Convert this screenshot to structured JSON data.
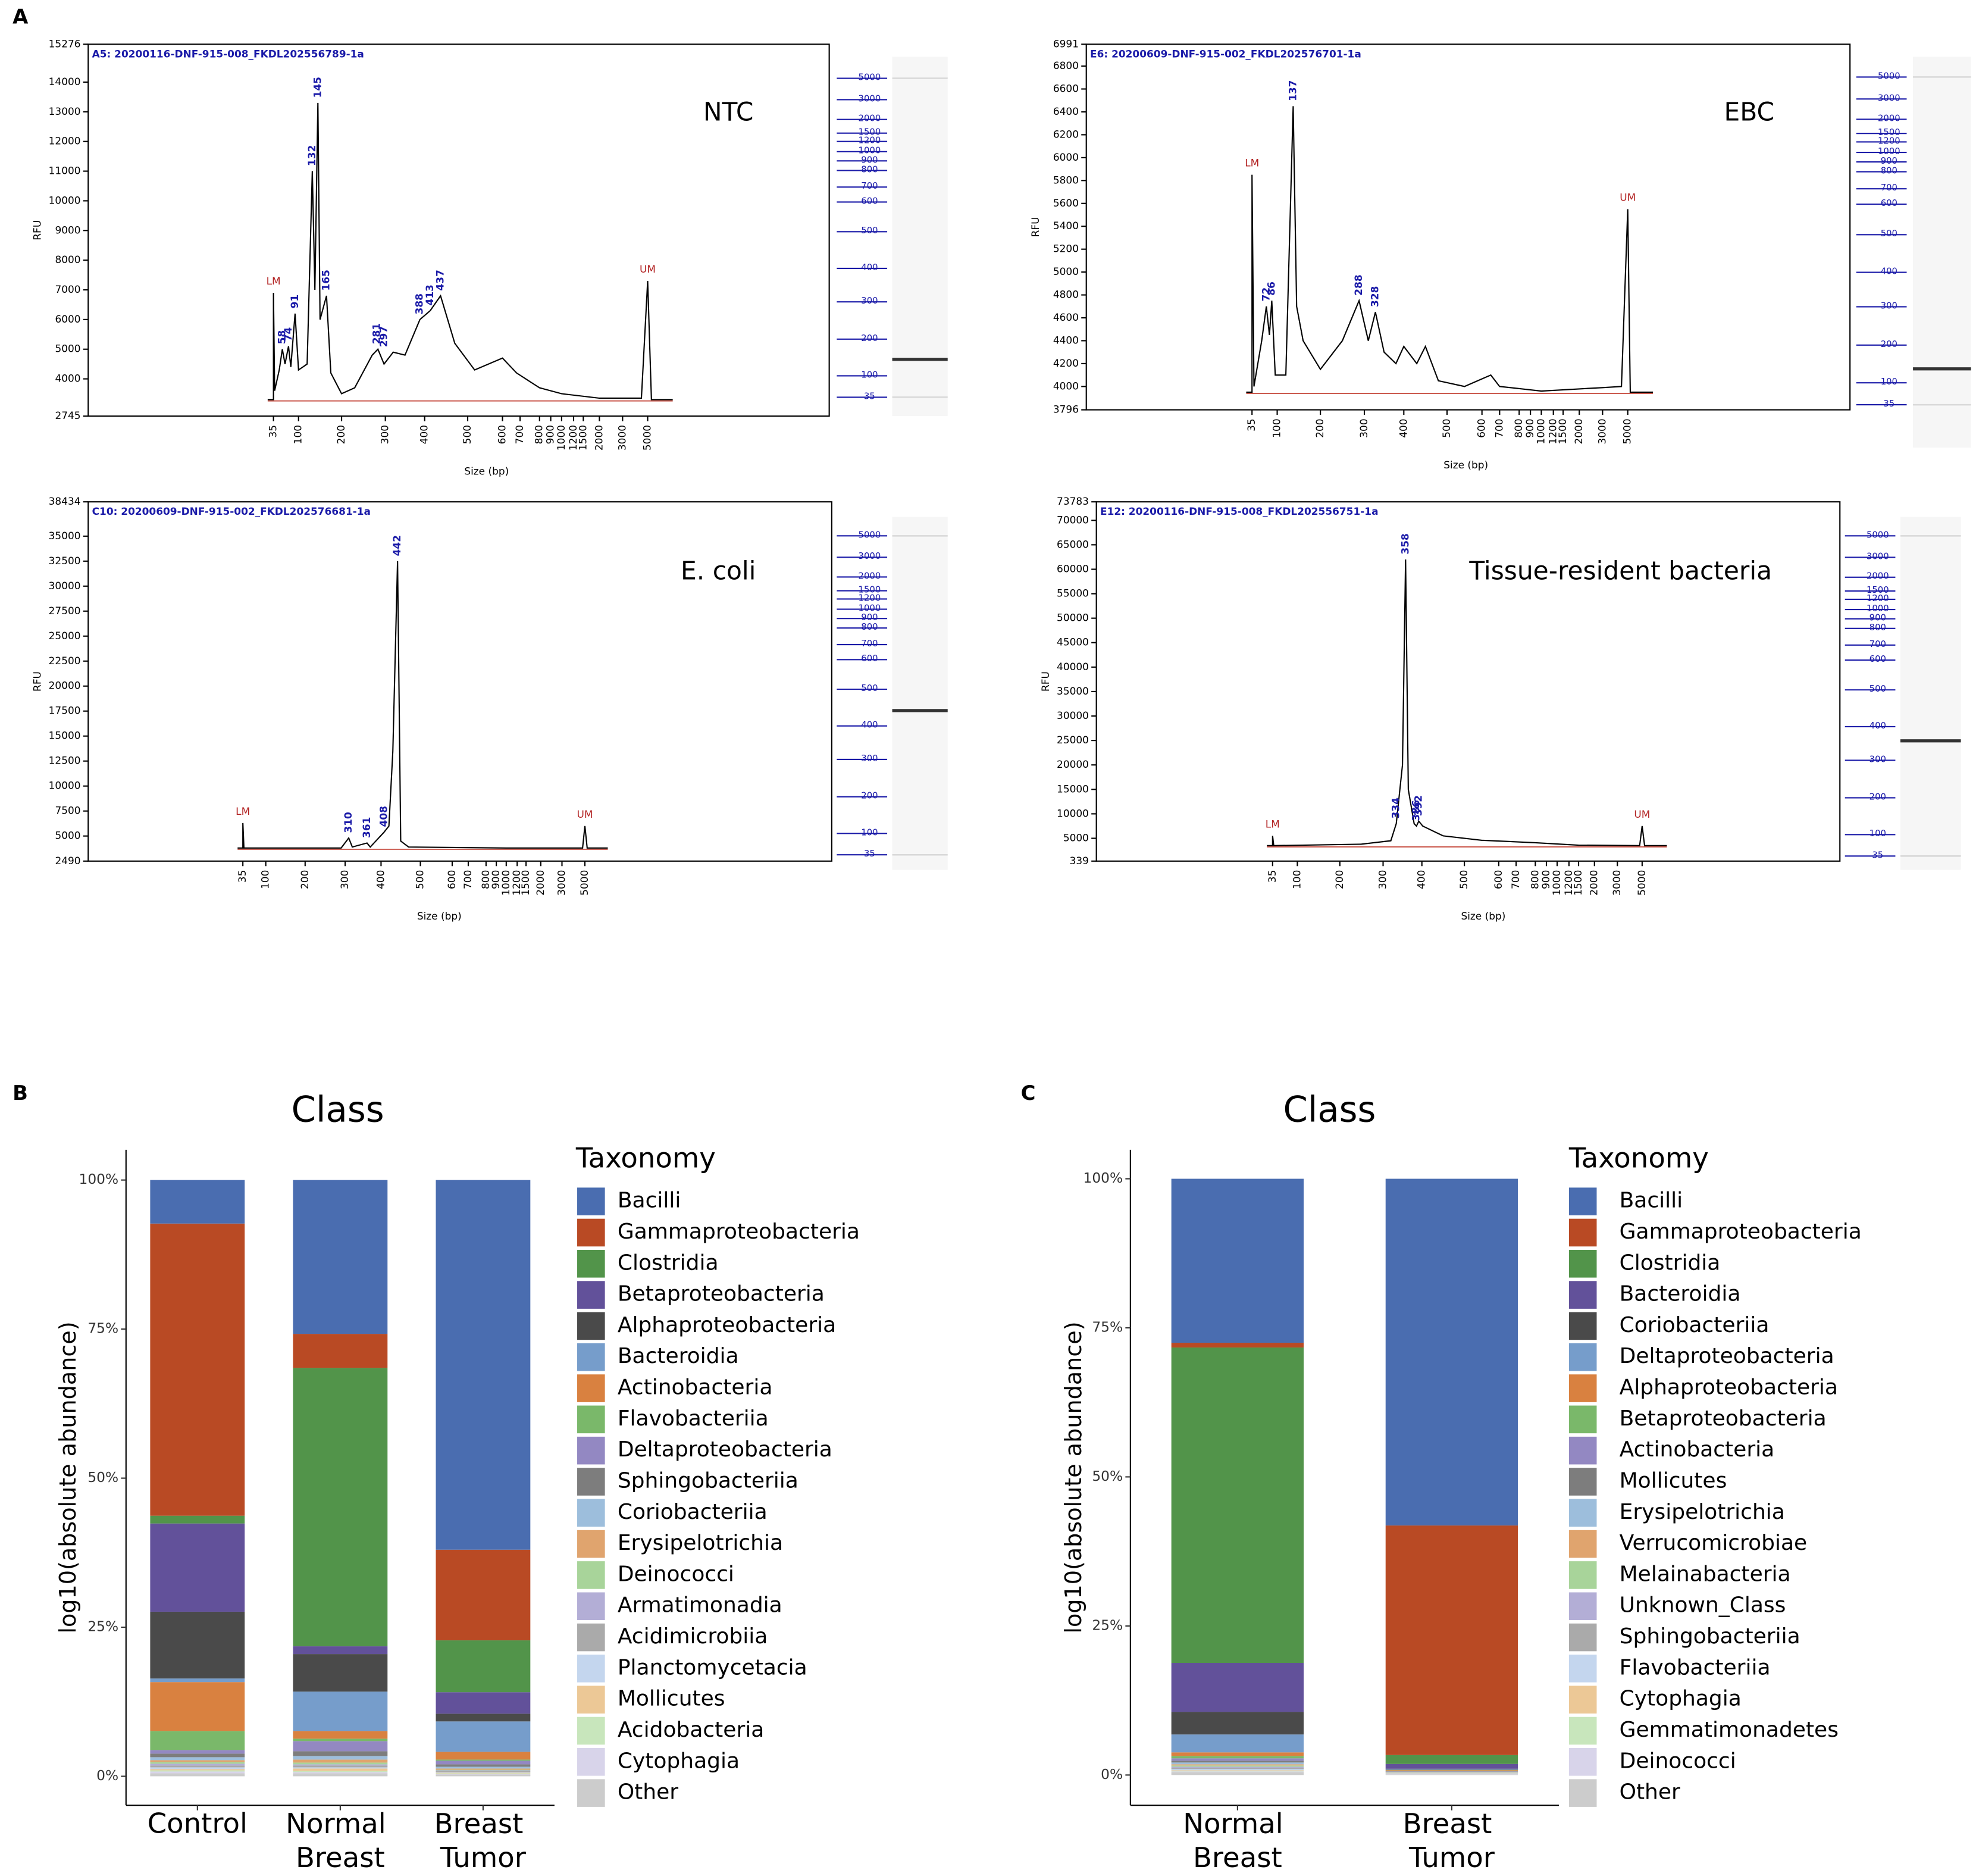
{
  "panel_labels": [
    "A",
    "B",
    "C"
  ],
  "chart_data": [
    {
      "type": "electropherogram",
      "title": "A5: 20200116-DNF-915-008_FKDL202556789-1a",
      "label": "NTC",
      "x_label": "Size (bp)",
      "y_label": "RFU",
      "xticks": [
        35,
        100,
        200,
        300,
        400,
        500,
        600,
        700,
        800,
        900,
        1000,
        1200,
        1500,
        2000,
        3000,
        5000
      ],
      "ladder": [
        35,
        100,
        200,
        300,
        400,
        500,
        600,
        700,
        800,
        900,
        1000,
        1200,
        1500,
        2000,
        3000,
        5000
      ],
      "ylim": [
        2745,
        15276
      ],
      "yticks": [
        2745,
        4000,
        5000,
        6000,
        7000,
        8000,
        9000,
        10000,
        11000,
        12000,
        13000,
        14000,
        15276
      ],
      "color": "#000000",
      "x": [
        20,
        35,
        35,
        38,
        50,
        58,
        65,
        74,
        80,
        91,
        100,
        120,
        132,
        138,
        145,
        150,
        165,
        175,
        200,
        230,
        270,
        283,
        297,
        320,
        350,
        388,
        413,
        437,
        470,
        520,
        600,
        680,
        800,
        1000,
        2000,
        4500,
        5000,
        5300,
        7000
      ],
      "values": [
        3300,
        3300,
        6900,
        3600,
        4300,
        5000,
        4500,
        5100,
        4400,
        6200,
        4300,
        4500,
        11000,
        7000,
        13300,
        6000,
        6800,
        4200,
        3500,
        3700,
        4800,
        5000,
        4500,
        4900,
        4800,
        6000,
        6300,
        6800,
        5200,
        4300,
        4700,
        4200,
        3700,
        3500,
        3350,
        3350,
        7300,
        3300,
        3300
      ],
      "annotations": [
        {
          "label": "58",
          "x": 58,
          "y": 5000
        },
        {
          "label": "74",
          "x": 74,
          "y": 5100
        },
        {
          "label": "91",
          "x": 91,
          "y": 6200
        },
        {
          "label": "132",
          "x": 132,
          "y": 11000
        },
        {
          "label": "145",
          "x": 145,
          "y": 13300
        },
        {
          "label": "165",
          "x": 165,
          "y": 6800
        },
        {
          "label": "281",
          "x": 281,
          "y": 5000
        },
        {
          "label": "297",
          "x": 297,
          "y": 4900
        },
        {
          "label": "388",
          "x": 388,
          "y": 6000
        },
        {
          "label": "413",
          "x": 413,
          "y": 6300
        },
        {
          "label": "437",
          "x": 437,
          "y": 6800
        }
      ],
      "markers": [
        {
          "label": "LM",
          "x": 35,
          "y": 6900
        },
        {
          "label": "UM",
          "x": 5000,
          "y": 7300
        }
      ]
    },
    {
      "type": "electropherogram",
      "title": "E6: 20200609-DNF-915-002_FKDL202576701-1a",
      "label": "EBC",
      "x_label": "Size (bp)",
      "y_label": "RFU",
      "xticks": [
        35,
        100,
        200,
        300,
        400,
        500,
        600,
        700,
        800,
        900,
        1000,
        1200,
        1500,
        2000,
        3000,
        5000
      ],
      "ladder": [
        35,
        100,
        200,
        300,
        400,
        500,
        600,
        700,
        800,
        900,
        1000,
        1200,
        1500,
        2000,
        3000,
        5000
      ],
      "ylim": [
        3796,
        6991
      ],
      "yticks": [
        3796,
        4000,
        4200,
        4400,
        4600,
        4800,
        5000,
        5200,
        5400,
        5600,
        5800,
        6000,
        6200,
        6400,
        6600,
        6800,
        6991
      ],
      "color": "#000000",
      "x": [
        20,
        35,
        35,
        40,
        60,
        72,
        80,
        86,
        95,
        120,
        137,
        145,
        160,
        200,
        250,
        288,
        310,
        328,
        350,
        380,
        400,
        430,
        450,
        480,
        550,
        650,
        700,
        1000,
        3000,
        4500,
        5000,
        5200,
        7000
      ],
      "values": [
        3950,
        3950,
        5850,
        4000,
        4400,
        4700,
        4450,
        4750,
        4100,
        4100,
        6450,
        4700,
        4400,
        4150,
        4400,
        4750,
        4400,
        4650,
        4300,
        4200,
        4350,
        4200,
        4350,
        4050,
        4000,
        4100,
        4000,
        3960,
        3990,
        4000,
        5550,
        3950,
        3950
      ],
      "annotations": [
        {
          "label": "72",
          "x": 72,
          "y": 4700
        },
        {
          "label": "86",
          "x": 86,
          "y": 4750
        },
        {
          "label": "137",
          "x": 137,
          "y": 6450
        },
        {
          "label": "288",
          "x": 288,
          "y": 4750
        },
        {
          "label": "328",
          "x": 328,
          "y": 4650
        }
      ],
      "markers": [
        {
          "label": "LM",
          "x": 35,
          "y": 5850
        },
        {
          "label": "UM",
          "x": 5000,
          "y": 5550
        }
      ]
    },
    {
      "type": "electropherogram",
      "title": "C10: 20200609-DNF-915-002_FKDL202576681-1a",
      "label": "E. coli",
      "x_label": "Size (bp)",
      "y_label": "RFU",
      "xticks": [
        35,
        100,
        200,
        300,
        400,
        500,
        600,
        700,
        800,
        900,
        1000,
        1200,
        1500,
        2000,
        3000,
        5000
      ],
      "ladder": [
        35,
        100,
        200,
        300,
        400,
        500,
        600,
        700,
        800,
        900,
        1000,
        1200,
        1500,
        2000,
        3000,
        5000
      ],
      "ylim": [
        2490,
        38434
      ],
      "yticks": [
        2490,
        5000,
        7500,
        10000,
        12500,
        15000,
        17500,
        20000,
        22500,
        25000,
        27500,
        30000,
        32500,
        35000,
        38434
      ],
      "color": "#000000",
      "x": [
        20,
        35,
        35,
        38,
        290,
        310,
        320,
        361,
        370,
        408,
        420,
        430,
        442,
        450,
        470,
        1000,
        4800,
        5000,
        5200,
        7000
      ],
      "values": [
        3800,
        3800,
        6300,
        3800,
        3800,
        4800,
        3900,
        4300,
        3900,
        5400,
        6000,
        13500,
        32500,
        4500,
        3900,
        3800,
        3800,
        6000,
        3800,
        3800
      ],
      "annotations": [
        {
          "label": "310",
          "x": 310,
          "y": 4800
        },
        {
          "label": "361",
          "x": 361,
          "y": 4300
        },
        {
          "label": "408",
          "x": 408,
          "y": 5400
        },
        {
          "label": "442",
          "x": 442,
          "y": 32500
        }
      ],
      "markers": [
        {
          "label": "LM",
          "x": 35,
          "y": 6300
        },
        {
          "label": "UM",
          "x": 5000,
          "y": 6000
        }
      ]
    },
    {
      "type": "electropherogram",
      "title": "E12: 20200116-DNF-915-008_FKDL202556751-1a",
      "label": "Tissue-resident bacteria",
      "x_label": "Size (bp)",
      "y_label": "RFU",
      "xticks": [
        35,
        100,
        200,
        300,
        400,
        500,
        600,
        700,
        800,
        900,
        1000,
        1200,
        1500,
        2000,
        3000,
        5000
      ],
      "ladder": [
        35,
        100,
        200,
        300,
        400,
        500,
        600,
        700,
        800,
        900,
        1000,
        1200,
        1500,
        2000,
        3000,
        5000
      ],
      "ylim": [
        339,
        73783
      ],
      "yticks": [
        339,
        5000,
        10000,
        15000,
        20000,
        25000,
        30000,
        35000,
        40000,
        45000,
        50000,
        55000,
        60000,
        65000,
        70000,
        73783
      ],
      "color": "#000000",
      "x": [
        20,
        35,
        35,
        38,
        250,
        320,
        334,
        350,
        358,
        365,
        380,
        386,
        392,
        402,
        450,
        550,
        800,
        1500,
        4800,
        5000,
        5200,
        7000
      ],
      "values": [
        3500,
        3500,
        5500,
        3500,
        3800,
        4500,
        8000,
        20000,
        62000,
        15000,
        8000,
        7500,
        8500,
        7500,
        5500,
        4600,
        4100,
        3600,
        3500,
        7500,
        3500,
        3500
      ],
      "annotations": [
        {
          "label": "334",
          "x": 334,
          "y": 8000
        },
        {
          "label": "358",
          "x": 358,
          "y": 62000
        },
        {
          "label": "386",
          "x": 386,
          "y": 7500
        },
        {
          "label": "392",
          "x": 392,
          "y": 8500
        }
      ],
      "markers": [
        {
          "label": "LM",
          "x": 35,
          "y": 5500
        },
        {
          "label": "UM",
          "x": 5000,
          "y": 7500
        }
      ]
    },
    {
      "type": "stacked_bar",
      "title": "Class",
      "y_label": "log10(absolute abundance)",
      "legend_title": "Taxonomy",
      "categories": [
        "Control",
        "Normal Breast",
        "Breast Tumor"
      ],
      "ylim": [
        0,
        100
      ],
      "yticks": [
        {
          "value": 0,
          "label": "0%"
        },
        {
          "value": 25,
          "label": "25%"
        },
        {
          "value": 50,
          "label": "50%"
        },
        {
          "value": 75,
          "label": "75%"
        },
        {
          "value": 100,
          "label": "100%"
        }
      ],
      "series": [
        {
          "name": "Bacilli",
          "color": "#4a6db0",
          "values": [
            7.3,
            25.8,
            62
          ]
        },
        {
          "name": "Gammaproteobacteria",
          "color": "#b94a24",
          "values": [
            49.0,
            5.7,
            15.2
          ]
        },
        {
          "name": "Clostridia",
          "color": "#52944a",
          "values": [
            1.3,
            46.7,
            8.7
          ]
        },
        {
          "name": "Betaproteobacteria",
          "color": "#62519a",
          "values": [
            14.8,
            1.3,
            3.6
          ]
        },
        {
          "name": "Alphaproteobacteria",
          "color": "#4a4a4a",
          "values": [
            11.2,
            6.3,
            1.3
          ]
        },
        {
          "name": "Bacteroidia",
          "color": "#769dcb",
          "values": [
            0.6,
            6.6,
            5.1
          ]
        },
        {
          "name": "Actinobacteria",
          "color": "#d98140",
          "values": [
            8.2,
            1.3,
            1.3
          ]
        },
        {
          "name": "Flavobacteriia",
          "color": "#7ab86a",
          "values": [
            3.2,
            0.4,
            0.2
          ]
        },
        {
          "name": "Deltaproteobacteria",
          "color": "#9388c2",
          "values": [
            0.6,
            1.7,
            0.6
          ]
        },
        {
          "name": "Sphingobacteriia",
          "color": "#7d7d7d",
          "values": [
            0.6,
            0.8,
            0.4
          ]
        },
        {
          "name": "Coriobacteriia",
          "color": "#9dbedc",
          "values": [
            0.5,
            0.6,
            0.3
          ]
        },
        {
          "name": "Erysipelotrichia",
          "color": "#e0a46e",
          "values": [
            0.3,
            0.5,
            0.2
          ]
        },
        {
          "name": "Deinococci",
          "color": "#a8d49a",
          "values": [
            0.3,
            0.3,
            0.1
          ]
        },
        {
          "name": "Armatimonadia",
          "color": "#b3aed6",
          "values": [
            0.3,
            0.2,
            0.1
          ]
        },
        {
          "name": "Acidimicrobiia",
          "color": "#aaaaaa",
          "values": [
            0.3,
            0.3,
            0.2
          ]
        },
        {
          "name": "Planctomycetacia",
          "color": "#c4d6ee",
          "values": [
            0.3,
            0.2,
            0.1
          ]
        },
        {
          "name": "Mollicutes",
          "color": "#ecc896",
          "values": [
            0.2,
            0.4,
            0.1
          ]
        },
        {
          "name": "Acidobacteria",
          "color": "#c8e6bc",
          "values": [
            0.2,
            0.2,
            0.1
          ]
        },
        {
          "name": "Cytophagia",
          "color": "#d8d4ea",
          "values": [
            0.3,
            0.2,
            0.1
          ]
        },
        {
          "name": "Other",
          "color": "#cccccc",
          "values": [
            0.5,
            0.5,
            0.3
          ]
        }
      ]
    },
    {
      "type": "stacked_bar",
      "title": "Class",
      "y_label": "log10(absolute abundance)",
      "legend_title": "Taxonomy",
      "categories": [
        "Normal Breast",
        "Breast Tumor"
      ],
      "ylim": [
        0,
        100
      ],
      "yticks": [
        {
          "value": 0,
          "label": "0%"
        },
        {
          "value": 25,
          "label": "25%"
        },
        {
          "value": 50,
          "label": "50%"
        },
        {
          "value": 75,
          "label": "75%"
        },
        {
          "value": 100,
          "label": "100%"
        }
      ],
      "series": [
        {
          "name": "Bacilli",
          "color": "#4a6db0",
          "values": [
            27.5,
            58.15
          ]
        },
        {
          "name": "Gammaproteobacteria",
          "color": "#b94a24",
          "values": [
            0.8,
            38.5
          ]
        },
        {
          "name": "Clostridia",
          "color": "#52944a",
          "values": [
            52.9,
            1.5
          ]
        },
        {
          "name": "Bacteroidia",
          "color": "#62519a",
          "values": [
            8.2,
            0.8
          ]
        },
        {
          "name": "Coriobacteriia",
          "color": "#4a4a4a",
          "values": [
            3.8,
            0.1
          ]
        },
        {
          "name": "Deltaproteobacteria",
          "color": "#769dcb",
          "values": [
            3.0,
            0.1
          ]
        },
        {
          "name": "Alphaproteobacteria",
          "color": "#d98140",
          "values": [
            0.6,
            0.1
          ]
        },
        {
          "name": "Betaproteobacteria",
          "color": "#7ab86a",
          "values": [
            0.4,
            0.1
          ]
        },
        {
          "name": "Actinobacteria",
          "color": "#9388c2",
          "values": [
            0.4,
            0.05
          ]
        },
        {
          "name": "Mollicutes",
          "color": "#7d7d7d",
          "values": [
            0.3,
            0.05
          ]
        },
        {
          "name": "Erysipelotrichia",
          "color": "#9dbedc",
          "values": [
            0.3,
            0.05
          ]
        },
        {
          "name": "Verrucomicrobiae",
          "color": "#e0a46e",
          "values": [
            0.2,
            0.05
          ]
        },
        {
          "name": "Melainabacteria",
          "color": "#a8d49a",
          "values": [
            0.2,
            0.05
          ]
        },
        {
          "name": "Unknown_Class",
          "color": "#b3aed6",
          "values": [
            0.2,
            0.05
          ]
        },
        {
          "name": "Sphingobacteriia",
          "color": "#aaaaaa",
          "values": [
            0.2,
            0.05
          ]
        },
        {
          "name": "Flavobacteriia",
          "color": "#c4d6ee",
          "values": [
            0.2,
            0.05
          ]
        },
        {
          "name": "Cytophagia",
          "color": "#ecc896",
          "values": [
            0.1,
            0.05
          ]
        },
        {
          "name": "Gemmatimonadetes",
          "color": "#c8e6bc",
          "values": [
            0.1,
            0.05
          ]
        },
        {
          "name": "Deinococci",
          "color": "#d8d4ea",
          "values": [
            0.1,
            0.05
          ]
        },
        {
          "name": "Other",
          "color": "#cccccc",
          "values": [
            0.5,
            0.1
          ]
        }
      ]
    }
  ]
}
